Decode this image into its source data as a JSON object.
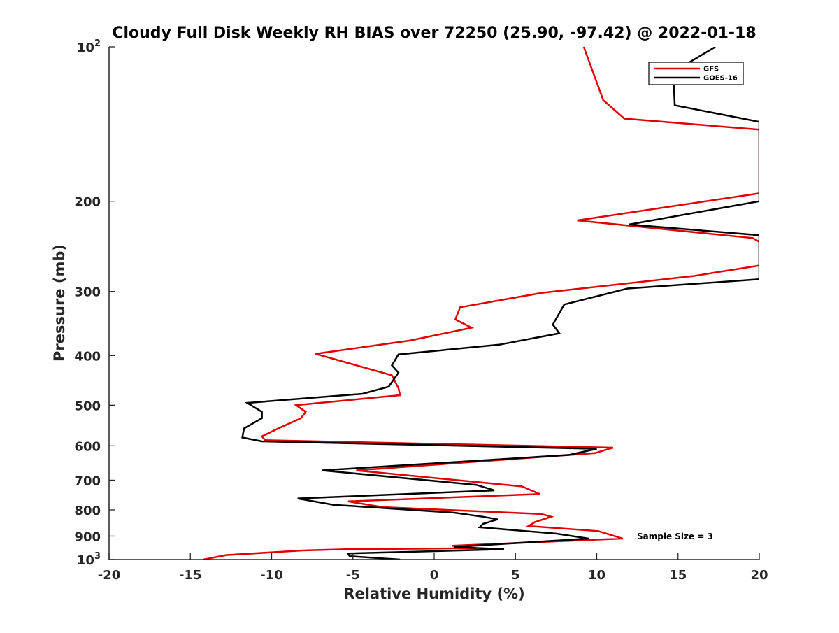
{
  "chart_data": {
    "type": "line",
    "title": "Cloudy Full Disk Weekly RH BIAS over 72250 (25.90, -97.42) @ 2022-01-18",
    "xlabel": "Relative Humidity (%)",
    "ylabel": "Pressure (mb)",
    "xlim": [
      -20,
      20
    ],
    "ylim": [
      100,
      1000
    ],
    "y_scale": "log",
    "y_reversed": true,
    "grid": false,
    "legend_position": "top-right",
    "x_ticks": [
      "-20",
      "-15",
      "-10",
      "-5",
      "0",
      "5",
      "10",
      "15",
      "20"
    ],
    "x_tick_values": [
      -20,
      -15,
      -10,
      -5,
      0,
      5,
      10,
      15,
      20
    ],
    "y_ticks": [
      {
        "value": 100,
        "base": "10",
        "exp": "2"
      },
      {
        "value": 200,
        "label": "200"
      },
      {
        "value": 300,
        "label": "300"
      },
      {
        "value": 400,
        "label": "400"
      },
      {
        "value": 500,
        "label": "500"
      },
      {
        "value": 600,
        "label": "600"
      },
      {
        "value": 700,
        "label": "700"
      },
      {
        "value": 800,
        "label": "800"
      },
      {
        "value": 900,
        "label": "900"
      },
      {
        "value": 1000,
        "base": "10",
        "exp": "3"
      }
    ],
    "annotation": "Sample Size = 3",
    "series": [
      {
        "name": "GFS",
        "color": "#e00000",
        "points": [
          [
            -14.2,
            1000
          ],
          [
            -12.8,
            980
          ],
          [
            -8.1,
            960
          ],
          [
            -5.4,
            955
          ],
          [
            2.6,
            950
          ],
          [
            1.1,
            940
          ],
          [
            11.6,
            910
          ],
          [
            10.1,
            880
          ],
          [
            5.8,
            860
          ],
          [
            6.2,
            845
          ],
          [
            7.2,
            825
          ],
          [
            6.6,
            815
          ],
          [
            -3.2,
            790
          ],
          [
            -5.3,
            770
          ],
          [
            6.5,
            745
          ],
          [
            5.4,
            720
          ],
          [
            -4.8,
            670
          ],
          [
            9.9,
            620
          ],
          [
            11.0,
            605
          ],
          [
            -10.4,
            585
          ],
          [
            -10.6,
            575
          ],
          [
            -9.6,
            555
          ],
          [
            -8.2,
            530
          ],
          [
            -7.9,
            515
          ],
          [
            -8.5,
            500
          ],
          [
            -2.1,
            478
          ],
          [
            -2.2,
            463
          ],
          [
            -2.6,
            437
          ],
          [
            -7.3,
            397
          ],
          [
            -1.5,
            374
          ],
          [
            2.3,
            353
          ],
          [
            1.3,
            340
          ],
          [
            1.6,
            322
          ],
          [
            6.6,
            302
          ],
          [
            15.9,
            280
          ],
          [
            20.0,
            267
          ],
          [
            20.0,
            240
          ],
          [
            19.6,
            236
          ],
          [
            8.8,
            218
          ],
          [
            20.0,
            193
          ],
          [
            20.0,
            145
          ],
          [
            11.7,
            138
          ],
          [
            10.4,
            127
          ],
          [
            9.2,
            100
          ]
        ]
      },
      {
        "name": "GOES-16",
        "color": "#000000",
        "points": [
          [
            -2.1,
            1000
          ],
          [
            -5.2,
            985
          ],
          [
            -5.3,
            973
          ],
          [
            4.3,
            955
          ],
          [
            1.2,
            945
          ],
          [
            9.5,
            910
          ],
          [
            7.5,
            890
          ],
          [
            2.8,
            865
          ],
          [
            3.0,
            852
          ],
          [
            3.9,
            835
          ],
          [
            3.0,
            825
          ],
          [
            1.2,
            810
          ],
          [
            -6.2,
            782
          ],
          [
            -8.4,
            760
          ],
          [
            3.7,
            733
          ],
          [
            2.6,
            715
          ],
          [
            -6.9,
            670
          ],
          [
            8.3,
            625
          ],
          [
            10.0,
            608
          ],
          [
            -10.6,
            588
          ],
          [
            -11.8,
            578
          ],
          [
            -11.7,
            555
          ],
          [
            -10.6,
            530
          ],
          [
            -10.6,
            515
          ],
          [
            -11.5,
            495
          ],
          [
            -4.4,
            475
          ],
          [
            -2.8,
            460
          ],
          [
            -2.2,
            432
          ],
          [
            -2.6,
            418
          ],
          [
            -2.2,
            398
          ],
          [
            4.0,
            381
          ],
          [
            7.7,
            362
          ],
          [
            7.3,
            348
          ],
          [
            8.0,
            318
          ],
          [
            11.9,
            296
          ],
          [
            20.0,
            284
          ],
          [
            20.0,
            233
          ],
          [
            12.0,
            222
          ],
          [
            20.0,
            200
          ],
          [
            20.0,
            140
          ],
          [
            14.8,
            130
          ],
          [
            14.7,
            112
          ],
          [
            15.1,
            110
          ],
          [
            17.3,
            100
          ]
        ]
      }
    ]
  }
}
